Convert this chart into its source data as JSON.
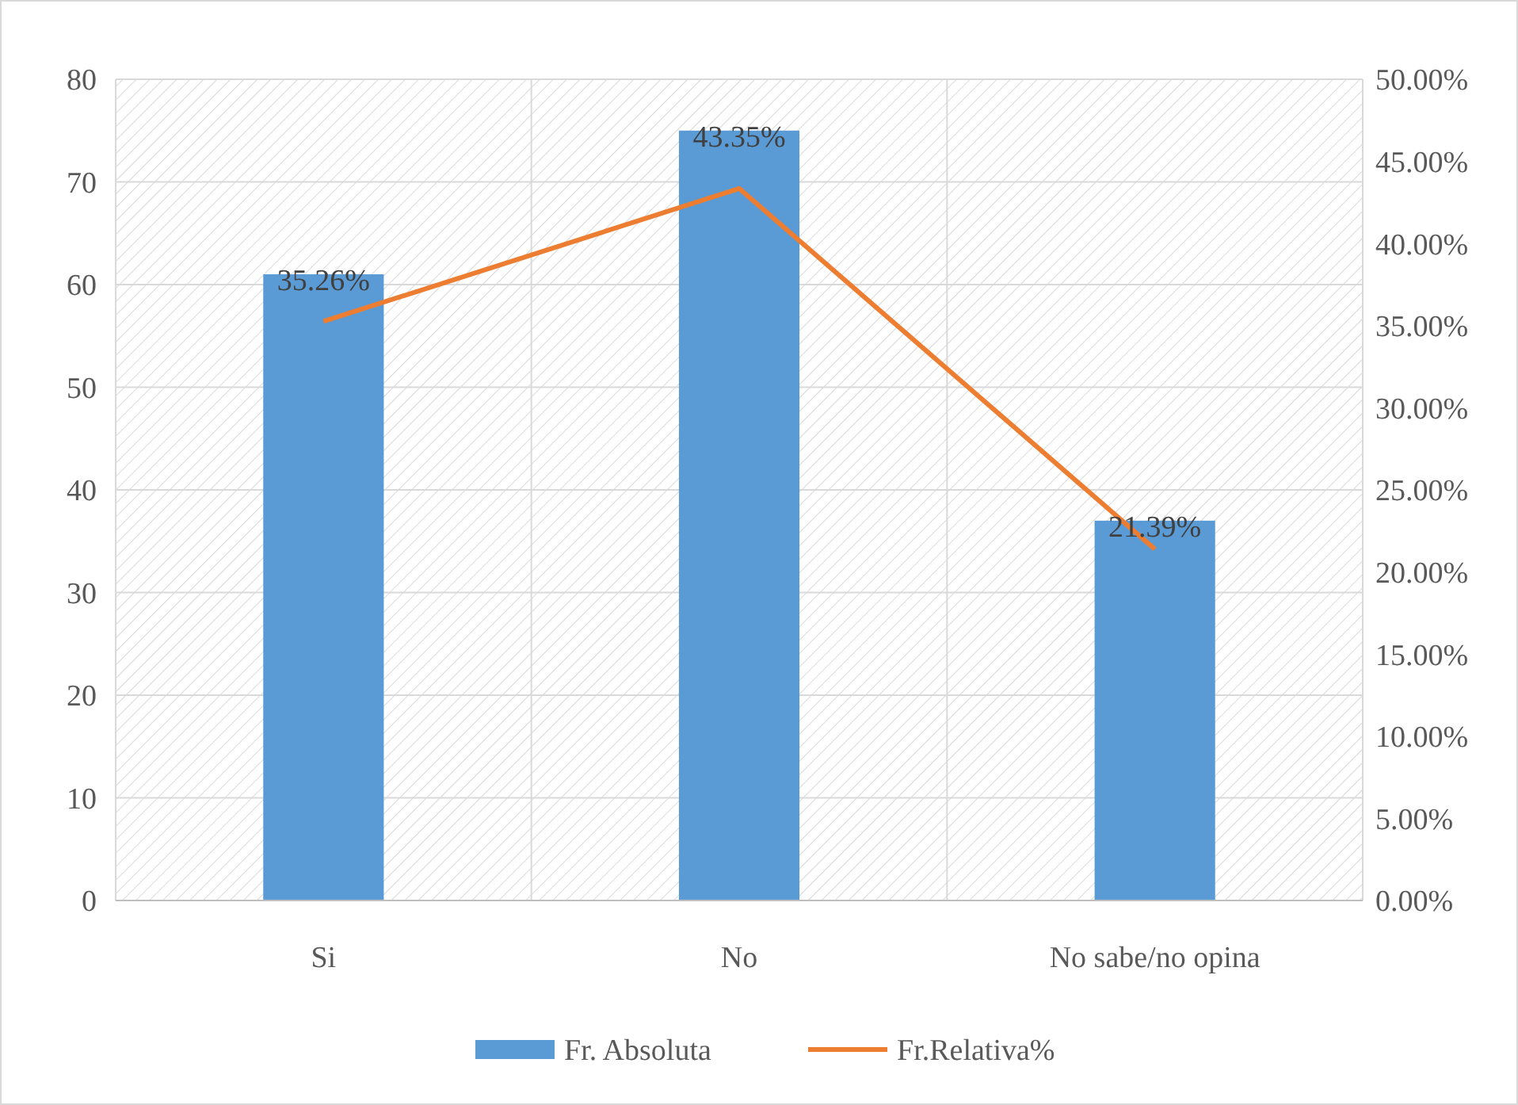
{
  "chart_data": {
    "type": "bar",
    "categories": [
      "Si",
      "No",
      "No sabe/no opina"
    ],
    "series": [
      {
        "name": "Fr. Absoluta",
        "color": "#5b9bd5",
        "values": [
          61,
          75,
          37
        ]
      },
      {
        "name": "Fr.Relativa%",
        "type": "line",
        "axis": "y2",
        "color": "#ed7d31",
        "values": [
          35.26,
          43.35,
          21.39
        ],
        "value_labels": [
          "35.26%",
          "43.35%",
          "21.39%"
        ]
      }
    ],
    "ylim": [
      0,
      80
    ],
    "yticks": [
      0,
      10,
      20,
      30,
      40,
      50,
      60,
      70,
      80
    ],
    "y2lim": [
      0,
      50
    ],
    "y2ticks": [
      {
        "value": 0,
        "label": "0.00%"
      },
      {
        "value": 5,
        "label": "5.00%"
      },
      {
        "value": 10,
        "label": "10.00%"
      },
      {
        "value": 15,
        "label": "15.00%"
      },
      {
        "value": 20,
        "label": "20.00%"
      },
      {
        "value": 25,
        "label": "25.00%"
      },
      {
        "value": 30,
        "label": "30.00%"
      },
      {
        "value": 35,
        "label": "35.00%"
      },
      {
        "value": 40,
        "label": "40.00%"
      },
      {
        "value": 45,
        "label": "45.00%"
      },
      {
        "value": 50,
        "label": "50.00%"
      }
    ],
    "grid": true,
    "legend": "bottom",
    "marker": "none",
    "line_style": "solid"
  }
}
